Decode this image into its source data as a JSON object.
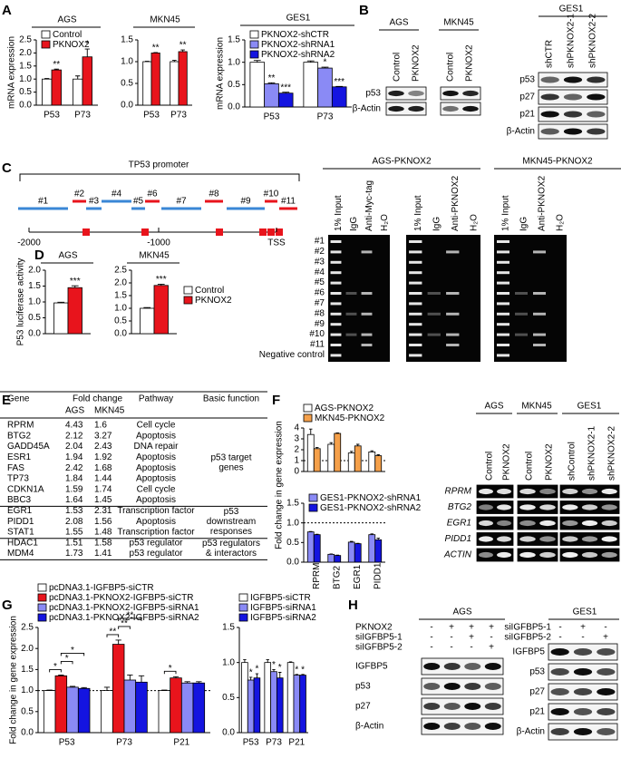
{
  "panels": [
    "A",
    "B",
    "C",
    "D",
    "E",
    "F",
    "G",
    "H"
  ],
  "chart_data": [
    {
      "type": "bar",
      "title": "AGS",
      "ylabel": "mRNA expression",
      "categories": [
        "P53",
        "P73"
      ],
      "series": [
        {
          "name": "Control",
          "color": "#ffffff",
          "values": [
            1.0,
            1.0
          ],
          "errors": [
            0.02,
            0.12
          ]
        },
        {
          "name": "PKNOX2",
          "color": "#e8141c",
          "values": [
            1.35,
            1.85
          ],
          "errors": [
            0.03,
            0.3
          ],
          "significance": [
            "**",
            "*"
          ]
        }
      ],
      "ylim": [
        0,
        2.5
      ],
      "yticks": [
        {
          "value": 0,
          "label": "0.0"
        },
        {
          "value": 0.5,
          "label": "0.5"
        },
        {
          "value": 1,
          "label": "1.0"
        },
        {
          "value": 1.5,
          "label": "1.5"
        },
        {
          "value": 2,
          "label": "2.0"
        },
        {
          "value": 2.5,
          "label": "2.5"
        }
      ],
      "legend": "upper left"
    },
    {
      "type": "bar",
      "title": "MKN45",
      "categories": [
        "P53",
        "P73"
      ],
      "series": [
        {
          "color": "#ffffff",
          "values": [
            1.0,
            1.0
          ],
          "errors": [
            0.01,
            0.03
          ]
        },
        {
          "color": "#e8141c",
          "values": [
            1.2,
            1.23
          ],
          "errors": [
            0.01,
            0.04
          ],
          "significance": [
            "**",
            "**"
          ]
        }
      ],
      "ylim": [
        0,
        1.5
      ],
      "yticks": [
        {
          "value": 0,
          "label": "0.0"
        },
        {
          "value": 0.5,
          "label": "0.5"
        },
        {
          "value": 1,
          "label": "1.0"
        },
        {
          "value": 1.5,
          "label": "1.5"
        }
      ]
    },
    {
      "type": "bar",
      "title": "GES1",
      "ylabel": "mRNA expression",
      "categories": [
        "P53",
        "P73"
      ],
      "series": [
        {
          "name": "PKNOX2-shCTR",
          "color": "#ffffff",
          "values": [
            1.0,
            1.0
          ],
          "errors": [
            0.04,
            0.03
          ]
        },
        {
          "name": "PKNOX2-shRNA1",
          "color": "#8a8af5",
          "values": [
            0.52,
            0.87
          ],
          "errors": [
            0.02,
            0.02
          ],
          "significance": [
            "**",
            "*"
          ]
        },
        {
          "name": "PKNOX2-shRNA2",
          "color": "#1414e0",
          "values": [
            0.31,
            0.45
          ],
          "errors": [
            0.02,
            0.01
          ],
          "significance": [
            "***",
            "***"
          ]
        }
      ],
      "ylim": [
        0,
        1.5
      ],
      "yticks": [
        {
          "value": 0,
          "label": "0.0"
        },
        {
          "value": 0.5,
          "label": "0.5"
        },
        {
          "value": 1,
          "label": "1.0"
        },
        {
          "value": 1.5,
          "label": "1.5"
        }
      ],
      "legend": "upper left"
    },
    {
      "type": "bar",
      "title": "AGS",
      "ylabel": "P53 luciferase activity",
      "categories": [
        null
      ],
      "series": [
        {
          "color": "#ffffff",
          "values": [
            0.97
          ],
          "errors": [
            0.02
          ]
        },
        {
          "color": "#e8141c",
          "values": [
            1.45
          ],
          "errors": [
            0.06
          ],
          "significance": [
            "***"
          ]
        }
      ],
      "ylim": [
        0,
        2
      ],
      "yticks": [
        {
          "value": 0,
          "label": "0.0"
        },
        {
          "value": 0.5,
          "label": "0.5"
        },
        {
          "value": 1,
          "label": "1.0"
        },
        {
          "value": 1.5,
          "label": "1.5"
        },
        {
          "value": 2,
          "label": "2.0"
        }
      ]
    },
    {
      "type": "bar",
      "title": "MKN45",
      "categories": [
        null
      ],
      "series": [
        {
          "name": "Control",
          "color": "#ffffff",
          "values": [
            1.0
          ],
          "errors": [
            0.03
          ]
        },
        {
          "name": "PKNOX2",
          "color": "#e8141c",
          "values": [
            1.9
          ],
          "errors": [
            0.05
          ],
          "significance": [
            "***"
          ]
        }
      ],
      "ylim": [
        0,
        2.5
      ],
      "yticks": [
        {
          "value": 0,
          "label": "0.0"
        },
        {
          "value": 0.5,
          "label": "0.5"
        },
        {
          "value": 1,
          "label": "1.0"
        },
        {
          "value": 1.5,
          "label": "1.5"
        },
        {
          "value": 2,
          "label": "2.0"
        },
        {
          "value": 2.5,
          "label": "2.5"
        }
      ],
      "legend": "right"
    },
    {
      "type": "bar",
      "categories": [
        null,
        null,
        null,
        null
      ],
      "series": [
        {
          "name": "AGS-PKNOX2",
          "color": "#ffffff",
          "values": [
            3.4,
            2.5,
            1.7,
            1.8
          ],
          "errors": [
            0.5,
            0.15,
            0.15,
            0.1
          ]
        },
        {
          "name": "MKN45-PKNOX2",
          "color": "#f5a04a",
          "values": [
            2.1,
            3.5,
            2.35,
            1.45
          ],
          "errors": [
            0.1,
            0.05,
            0.15,
            0.1
          ]
        }
      ],
      "ylim": [
        0,
        4
      ],
      "yticks": [
        0,
        1,
        2,
        3,
        4
      ],
      "refline": 1,
      "legend": "above"
    },
    {
      "type": "bar",
      "ylabel": "Fold change in gene expression",
      "categories": [
        "RPRM",
        "BTG2",
        "EGR1",
        "PIDD1"
      ],
      "series": [
        {
          "name": "GES1-PKNOX2-shRNA1",
          "color": "#8a8af5",
          "values": [
            0.77,
            0.2,
            0.51,
            0.7
          ],
          "errors": [
            0.01,
            0.01,
            0.02,
            0.02
          ]
        },
        {
          "name": "GES1-PKNOX2-shRNA2",
          "color": "#1414e0",
          "values": [
            0.7,
            0.17,
            0.47,
            0.57
          ],
          "errors": [
            0.01,
            0.01,
            0.01,
            0.04
          ]
        }
      ],
      "ylim": [
        0,
        1.5
      ],
      "yticks": [
        {
          "value": 0,
          "label": "0.0"
        },
        {
          "value": 0.5,
          "label": "0.5"
        },
        {
          "value": 1,
          "label": "1.0"
        },
        {
          "value": 1.5,
          "label": "1.5"
        }
      ],
      "refline": 1,
      "legend": "upper left"
    },
    {
      "type": "bar",
      "ylabel": "Fold change in gene expression",
      "categories": [
        "P53",
        "P73",
        "P21"
      ],
      "series": [
        {
          "name": "pcDNA3.1-IGFBP5-siCTR",
          "color": "#ffffff",
          "values": [
            1.0,
            1.0,
            1.0
          ],
          "errors": [
            0.01,
            0.08,
            0.01
          ]
        },
        {
          "name": "pcDNA3.1-PKNOX2-IGFBP5-siCTR",
          "color": "#e8141c",
          "values": [
            1.35,
            2.1,
            1.3
          ],
          "errors": [
            0.02,
            0.1,
            0.03
          ]
        },
        {
          "name": "pcDNA3.1-PKNOX2-IGFBP5-siRNA1",
          "color": "#8a8af5",
          "values": [
            1.08,
            1.25,
            1.18
          ],
          "errors": [
            0.02,
            0.12,
            0.03
          ]
        },
        {
          "name": "pcDNA3.1-PKNOX2-IGFBP5-siRNA2",
          "color": "#1414e0",
          "values": [
            1.05,
            1.2,
            1.18
          ],
          "errors": [
            0.02,
            0.15,
            0.03
          ]
        }
      ],
      "comparisons": [
        {
          "category": 0,
          "from": 0,
          "to": 1,
          "label": "*"
        },
        {
          "category": 0,
          "from": 1,
          "to": 2,
          "label": "*"
        },
        {
          "category": 0,
          "from": 1,
          "to": 3,
          "label": "*"
        },
        {
          "category": 1,
          "from": 0,
          "to": 1,
          "label": "**"
        },
        {
          "category": 1,
          "from": 1,
          "to": 2,
          "label": "**"
        },
        {
          "category": 1,
          "from": 1,
          "to": 3,
          "label": "**"
        },
        {
          "category": 2,
          "from": 0,
          "to": 1,
          "label": "*"
        }
      ],
      "ylim": [
        0,
        2.5
      ],
      "yticks": [
        {
          "value": 0,
          "label": "0.0"
        },
        {
          "value": 0.5,
          "label": "0.5"
        },
        {
          "value": 1,
          "label": "1.0"
        },
        {
          "value": 1.5,
          "label": "1.5"
        },
        {
          "value": 2,
          "label": "2.0"
        },
        {
          "value": 2.5,
          "label": "2.5"
        }
      ],
      "refline": 1,
      "legend": "above"
    },
    {
      "type": "bar",
      "categories": [
        "P53",
        "P73",
        "P21"
      ],
      "series": [
        {
          "name": "IGFBP5-siCTR",
          "color": "#ffffff",
          "values": [
            1.0,
            1.0,
            1.0
          ],
          "errors": [
            0.04,
            0.04,
            0.01
          ]
        },
        {
          "name": "IGFBP5-siRNA1",
          "color": "#8a8af5",
          "values": [
            0.75,
            0.87,
            0.82
          ],
          "errors": [
            0.04,
            0.03,
            0.01
          ],
          "significance": [
            "*",
            "*",
            "*"
          ]
        },
        {
          "name": "IGFBP5-siRNA2",
          "color": "#1414e0",
          "values": [
            0.78,
            0.78,
            0.82
          ],
          "errors": [
            0.06,
            0.08,
            0.01
          ],
          "significance": [
            "*",
            "*",
            "*"
          ]
        }
      ],
      "ylim": [
        0,
        1.5
      ],
      "yticks": [
        {
          "value": 0,
          "label": "0.0"
        },
        {
          "value": 0.5,
          "label": "0.5"
        },
        {
          "value": 1,
          "label": "1.0"
        },
        {
          "value": 1.5,
          "label": "1.5"
        }
      ],
      "legend": "above"
    }
  ],
  "blot_b": {
    "left_groups": [
      "AGS",
      "MKN45"
    ],
    "left_lanes": [
      "Control",
      "PKNOX2",
      "Control",
      "PKNOX2"
    ],
    "left_rows": [
      "p53",
      "β-Actin"
    ],
    "right_group": "GES1",
    "right_lanes": [
      "shCTR",
      "shPKNOX2-1",
      "shPKNOX2-2"
    ],
    "right_rows": [
      "p53",
      "p27",
      "p21",
      "β-Actin"
    ]
  },
  "promoter_c": {
    "title": "TP53 promoter",
    "fragments": [
      "#1",
      "#2",
      "#3",
      "#4",
      "#5",
      "#6",
      "#7",
      "#8",
      "#9",
      "#10",
      "#11"
    ],
    "axis_labels": [
      "-2000",
      "-1000",
      "TSS"
    ]
  },
  "chip_c": {
    "groups": [
      "AGS-PKNOX2",
      "MKN45-PKNOX2"
    ],
    "gels": [
      {
        "lanes": [
          "1% Input",
          "IgG",
          "Anti-Myc-tag",
          "H₂O"
        ]
      },
      {
        "lanes": [
          "1% Input",
          "IgG",
          "Anti-PKNOX2",
          "H₂O"
        ]
      },
      {
        "lanes": [
          "1% Input",
          "IgG",
          "Anti-PKNOX2",
          "H₂O"
        ]
      }
    ],
    "rows": [
      "#1",
      "#2",
      "#3",
      "#4",
      "#5",
      "#6",
      "#7",
      "#8",
      "#9",
      "#10",
      "#11",
      "Negative control"
    ]
  },
  "table_e": {
    "headers": [
      "Gene",
      "Fold change",
      "Pathway",
      "Basic function"
    ],
    "subheaders": [
      "AGS",
      "MKN45"
    ],
    "sections": [
      {
        "function": [
          "p53 target",
          "genes"
        ],
        "rows": [
          [
            "RPRM",
            4.43,
            1.6,
            "Cell cycle"
          ],
          [
            "BTG2",
            2.12,
            3.27,
            "Apoptosis"
          ],
          [
            "GADD45A",
            2.04,
            2.43,
            "DNA repair"
          ],
          [
            "ESR1",
            1.94,
            1.92,
            "Apoptosis"
          ],
          [
            "FAS",
            2.42,
            1.68,
            "Apoptosis"
          ],
          [
            "TP73",
            1.84,
            1.44,
            "Apoptosis"
          ],
          [
            "CDKN1A",
            1.59,
            1.74,
            "Cell cycle"
          ],
          [
            "BBC3",
            1.64,
            1.45,
            "Apoptosis"
          ]
        ]
      },
      {
        "function": [
          "p53",
          "downstream",
          "responses"
        ],
        "rows": [
          [
            "EGR1",
            1.53,
            2.31,
            "Transcription factor"
          ],
          [
            "PIDD1",
            2.08,
            1.56,
            "Apoptosis"
          ],
          [
            "STAT1",
            1.55,
            1.48,
            "Transcription factor"
          ]
        ]
      },
      {
        "function": [
          "p53 regulators",
          "& interactors"
        ],
        "rows": [
          [
            "HDAC1",
            1.51,
            1.58,
            "p53 regulator"
          ],
          [
            "MDM4",
            1.73,
            1.41,
            "p53 regulator"
          ]
        ]
      }
    ]
  },
  "gel_f": {
    "groups": [
      "AGS",
      "MKN45",
      "GES1"
    ],
    "lanes": [
      "Control",
      "PKNOX2",
      "Control",
      "PKNOX2",
      "shControl",
      "shPKNOX2-1",
      "shPKNOX2-2"
    ],
    "rows": [
      "RPRM",
      "BTG2",
      "EGR1",
      "PIDD1",
      "ACTIN"
    ]
  },
  "blot_h": {
    "left": {
      "group": "AGS",
      "conditions": [
        {
          "label": "PKNOX2",
          "signs": [
            "-",
            "+",
            "+",
            "+"
          ]
        },
        {
          "label": "siIGFBP5-1",
          "signs": [
            "-",
            "-",
            "+",
            "-"
          ]
        },
        {
          "label": "siIGFBP5-2",
          "signs": [
            "-",
            "-",
            "-",
            "+"
          ]
        }
      ],
      "rows": [
        "IGFBP5",
        "p53",
        "p27",
        "β-Actin"
      ]
    },
    "right": {
      "group": "GES1",
      "conditions": [
        {
          "label": "siIGFBP5-1",
          "signs": [
            "-",
            "+",
            "-"
          ]
        },
        {
          "label": "siIGFBP5-2",
          "signs": [
            "-",
            "-",
            "+"
          ]
        }
      ],
      "rows": [
        "IGFBP5",
        "p53",
        "p27",
        "p21",
        "β-Actin"
      ]
    }
  }
}
